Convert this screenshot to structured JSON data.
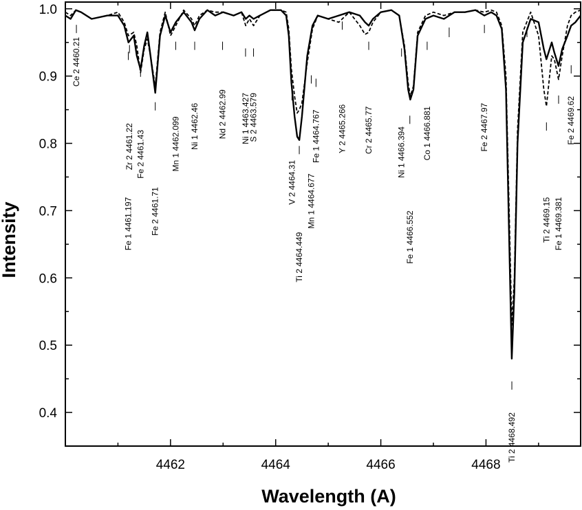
{
  "chart_data": {
    "type": "line",
    "title": "",
    "xlabel": "Wavelength (A)",
    "ylabel": "Intensity",
    "xlim": [
      4460.0,
      4469.8
    ],
    "ylim": [
      0.35,
      1.01
    ],
    "x_ticks": [
      4462,
      4464,
      4466,
      4468
    ],
    "x_tick_labels": [
      "4462",
      "4464",
      "4466",
      "4468"
    ],
    "y_ticks": [
      0.4,
      0.5,
      0.6,
      0.7,
      0.8,
      0.9,
      1.0
    ],
    "y_tick_labels": [
      "0.4",
      "0.5",
      "0.6",
      "0.7",
      "0.8",
      "0.9",
      "1.0"
    ],
    "grid": false,
    "legend": "none",
    "series": [
      {
        "style": "solid",
        "x": [
          4460.0,
          4460.1,
          4460.2,
          4460.3,
          4460.5,
          4460.8,
          4461.0,
          4461.12,
          4461.2,
          4461.3,
          4461.36,
          4461.43,
          4461.5,
          4461.56,
          4461.62,
          4461.71,
          4461.8,
          4461.9,
          4462.0,
          4462.1,
          4462.25,
          4462.4,
          4462.46,
          4462.55,
          4462.7,
          4462.85,
          4463.0,
          4463.2,
          4463.35,
          4463.43,
          4463.5,
          4463.58,
          4463.7,
          4463.9,
          4464.1,
          4464.2,
          4464.25,
          4464.3,
          4464.36,
          4464.41,
          4464.45,
          4464.5,
          4464.6,
          4464.7,
          4464.8,
          4465.0,
          4465.2,
          4465.4,
          4465.6,
          4465.7,
          4465.77,
          4465.85,
          4466.0,
          4466.2,
          4466.35,
          4466.45,
          4466.52,
          4466.56,
          4466.62,
          4466.7,
          4466.85,
          4467.0,
          4467.2,
          4467.4,
          4467.6,
          4467.8,
          4467.97,
          4468.1,
          4468.2,
          4468.3,
          4468.38,
          4468.44,
          4468.49,
          4468.54,
          4468.6,
          4468.7,
          4468.85,
          4469.0,
          4469.1,
          4469.15,
          4469.25,
          4469.3,
          4469.38,
          4469.45,
          4469.55,
          4469.62,
          4469.7,
          4469.8
        ],
        "y": [
          0.99,
          0.985,
          0.998,
          0.995,
          0.985,
          0.99,
          0.99,
          0.975,
          0.95,
          0.96,
          0.93,
          0.91,
          0.945,
          0.965,
          0.93,
          0.875,
          0.96,
          0.99,
          0.965,
          0.98,
          0.995,
          0.98,
          0.968,
          0.985,
          0.998,
          0.99,
          0.995,
          0.99,
          0.995,
          0.985,
          0.99,
          0.985,
          0.99,
          0.998,
          0.998,
          0.99,
          0.96,
          0.89,
          0.84,
          0.81,
          0.805,
          0.84,
          0.93,
          0.975,
          0.99,
          0.985,
          0.99,
          0.995,
          0.99,
          0.98,
          0.975,
          0.985,
          0.995,
          0.998,
          0.99,
          0.94,
          0.88,
          0.865,
          0.88,
          0.96,
          0.985,
          0.99,
          0.985,
          0.995,
          0.995,
          0.998,
          0.99,
          0.995,
          0.99,
          0.97,
          0.88,
          0.66,
          0.48,
          0.58,
          0.8,
          0.95,
          0.985,
          0.98,
          0.94,
          0.925,
          0.95,
          0.935,
          0.915,
          0.94,
          0.96,
          0.975,
          0.98,
          0.99
        ]
      },
      {
        "style": "dashed",
        "x": [
          4460.0,
          4460.1,
          4460.2,
          4460.3,
          4460.5,
          4460.8,
          4461.0,
          4461.12,
          4461.2,
          4461.3,
          4461.36,
          4461.43,
          4461.5,
          4461.56,
          4461.62,
          4461.71,
          4461.8,
          4461.9,
          4462.0,
          4462.1,
          4462.25,
          4462.4,
          4462.46,
          4462.55,
          4462.7,
          4462.85,
          4463.0,
          4463.2,
          4463.35,
          4463.43,
          4463.5,
          4463.58,
          4463.7,
          4463.9,
          4464.1,
          4464.2,
          4464.25,
          4464.3,
          4464.36,
          4464.41,
          4464.45,
          4464.5,
          4464.6,
          4464.7,
          4464.8,
          4465.0,
          4465.2,
          4465.4,
          4465.6,
          4465.7,
          4465.77,
          4465.85,
          4466.0,
          4466.2,
          4466.35,
          4466.45,
          4466.52,
          4466.56,
          4466.62,
          4466.7,
          4466.85,
          4467.0,
          4467.2,
          4467.4,
          4467.6,
          4467.8,
          4467.97,
          4468.1,
          4468.2,
          4468.3,
          4468.38,
          4468.44,
          4468.49,
          4468.54,
          4468.6,
          4468.7,
          4468.85,
          4469.0,
          4469.1,
          4469.15,
          4469.25,
          4469.3,
          4469.38,
          4469.45,
          4469.55,
          4469.62,
          4469.7,
          4469.8
        ],
        "y": [
          0.995,
          0.99,
          0.998,
          0.995,
          0.985,
          0.99,
          0.995,
          0.98,
          0.96,
          0.965,
          0.945,
          0.905,
          0.94,
          0.955,
          0.93,
          0.885,
          0.965,
          0.995,
          0.96,
          0.975,
          0.998,
          0.985,
          0.975,
          0.99,
          0.998,
          0.995,
          0.995,
          0.99,
          0.995,
          0.975,
          0.985,
          0.975,
          0.99,
          0.998,
          0.998,
          0.995,
          0.97,
          0.91,
          0.87,
          0.845,
          0.85,
          0.86,
          0.92,
          0.97,
          0.99,
          0.985,
          0.98,
          0.995,
          0.975,
          0.962,
          0.965,
          0.98,
          0.995,
          0.998,
          0.99,
          0.945,
          0.89,
          0.87,
          0.885,
          0.965,
          0.99,
          0.995,
          0.99,
          0.995,
          0.995,
          0.998,
          0.995,
          0.998,
          0.995,
          0.975,
          0.9,
          0.7,
          0.53,
          0.6,
          0.82,
          0.965,
          0.995,
          0.96,
          0.88,
          0.855,
          0.93,
          0.925,
          0.895,
          0.93,
          0.975,
          0.99,
          0.995,
          0.998
        ]
      }
    ],
    "annotations": [
      {
        "wavelength": 4460.21,
        "label": "Ce 2 4460.21",
        "marker_y": 0.97,
        "text_top_y": 0.958,
        "marker_side": "above"
      },
      {
        "wavelength": 4461.197,
        "label": "Fe 1 4461.197",
        "marker_y": 0.93,
        "text_top_y": 0.72,
        "marker_side": "above"
      },
      {
        "wavelength": 4461.22,
        "label": "Zr 2 4461.22",
        "marker_y": 0.94,
        "text_top_y": 0.83,
        "marker_side": "above"
      },
      {
        "wavelength": 4461.43,
        "label": "Fe 2 4461.43",
        "marker_y": 0.905,
        "text_top_y": 0.82,
        "marker_side": "below"
      },
      {
        "wavelength": 4461.71,
        "label": "Fe 2 4461.71",
        "marker_y": 0.855,
        "text_top_y": 0.735,
        "marker_side": "above"
      },
      {
        "wavelength": 4462.099,
        "label": "Mn 1 4462.099",
        "marker_y": 0.945,
        "text_top_y": 0.84,
        "marker_side": "above"
      },
      {
        "wavelength": 4462.46,
        "label": "Ni 1 4462.46",
        "marker_y": 0.945,
        "text_top_y": 0.86,
        "marker_side": "above"
      },
      {
        "wavelength": 4462.99,
        "label": "Nd 2 4462.99",
        "marker_y": 0.945,
        "text_top_y": 0.88,
        "marker_side": "above"
      },
      {
        "wavelength": 4463.427,
        "label": "Ni 1 4463.427",
        "marker_y": 0.935,
        "text_top_y": 0.875,
        "marker_side": "above"
      },
      {
        "wavelength": 4463.579,
        "label": "S 2 4463.579",
        "marker_y": 0.935,
        "text_top_y": 0.875,
        "marker_side": "above"
      },
      {
        "wavelength": 4464.31,
        "label": "V 2 4464.31",
        "marker_y": 0.87,
        "text_top_y": 0.775,
        "marker_side": "above"
      },
      {
        "wavelength": 4464.449,
        "label": "Ti 2 4464.449",
        "marker_y": 0.79,
        "text_top_y": 0.668,
        "marker_side": "above"
      },
      {
        "wavelength": 4464.677,
        "label": "Mn 1 4464.677",
        "marker_y": 0.895,
        "text_top_y": 0.755,
        "marker_side": "below"
      },
      {
        "wavelength": 4464.767,
        "label": "Fe 1 4464.767",
        "marker_y": 0.89,
        "text_top_y": 0.85,
        "marker_side": "above"
      },
      {
        "wavelength": 4465.266,
        "label": "Y 2 4465.266",
        "marker_y": 0.975,
        "text_top_y": 0.858,
        "marker_side": "above"
      },
      {
        "wavelength": 4465.77,
        "label": "Cr 2 4465.77",
        "marker_y": 0.945,
        "text_top_y": 0.855,
        "marker_side": "above"
      },
      {
        "wavelength": 4466.394,
        "label": "Ni 1 4466.394",
        "marker_y": 0.935,
        "text_top_y": 0.825,
        "marker_side": "above"
      },
      {
        "wavelength": 4466.552,
        "label": "Fe 1 4466.552",
        "marker_y": 0.835,
        "text_top_y": 0.7,
        "marker_side": "above"
      },
      {
        "wavelength": 4466.881,
        "label": "Co 1 4466.881",
        "marker_y": 0.945,
        "text_top_y": 0.855,
        "marker_side": "above"
      },
      {
        "wavelength": 4467.97,
        "label": "Fe 2 4467.97",
        "marker_y": 0.97,
        "text_top_y": 0.86,
        "marker_side": "above"
      },
      {
        "wavelength": 4468.492,
        "label": "Ti 2 4468.492",
        "marker_y": 0.44,
        "text_top_y": 0.4,
        "marker_side": "above"
      },
      {
        "wavelength": 4469.15,
        "label": "Ti 2 4469.15",
        "marker_y": 0.825,
        "text_top_y": 0.72,
        "marker_side": "above"
      },
      {
        "wavelength": 4469.381,
        "label": "Fe 1 4469.381",
        "marker_y": 0.865,
        "text_top_y": 0.72,
        "marker_side": "above"
      },
      {
        "wavelength": 4469.62,
        "label": "Fe 2 4469.62",
        "marker_y": 0.91,
        "text_top_y": 0.87,
        "marker_side": "above"
      }
    ],
    "unlabeled_marks": [
      4467.3,
      4468.78
    ]
  }
}
